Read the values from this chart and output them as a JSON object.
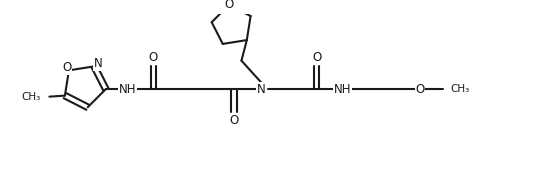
{
  "bg_color": "#ffffff",
  "line_color": "#1a1a1a",
  "lw": 1.5,
  "fs": 8.5,
  "figsize": [
    5.6,
    1.8
  ],
  "dpi": 100,
  "xlim": [
    0,
    10.0
  ],
  "ylim": [
    0,
    3.2
  ]
}
